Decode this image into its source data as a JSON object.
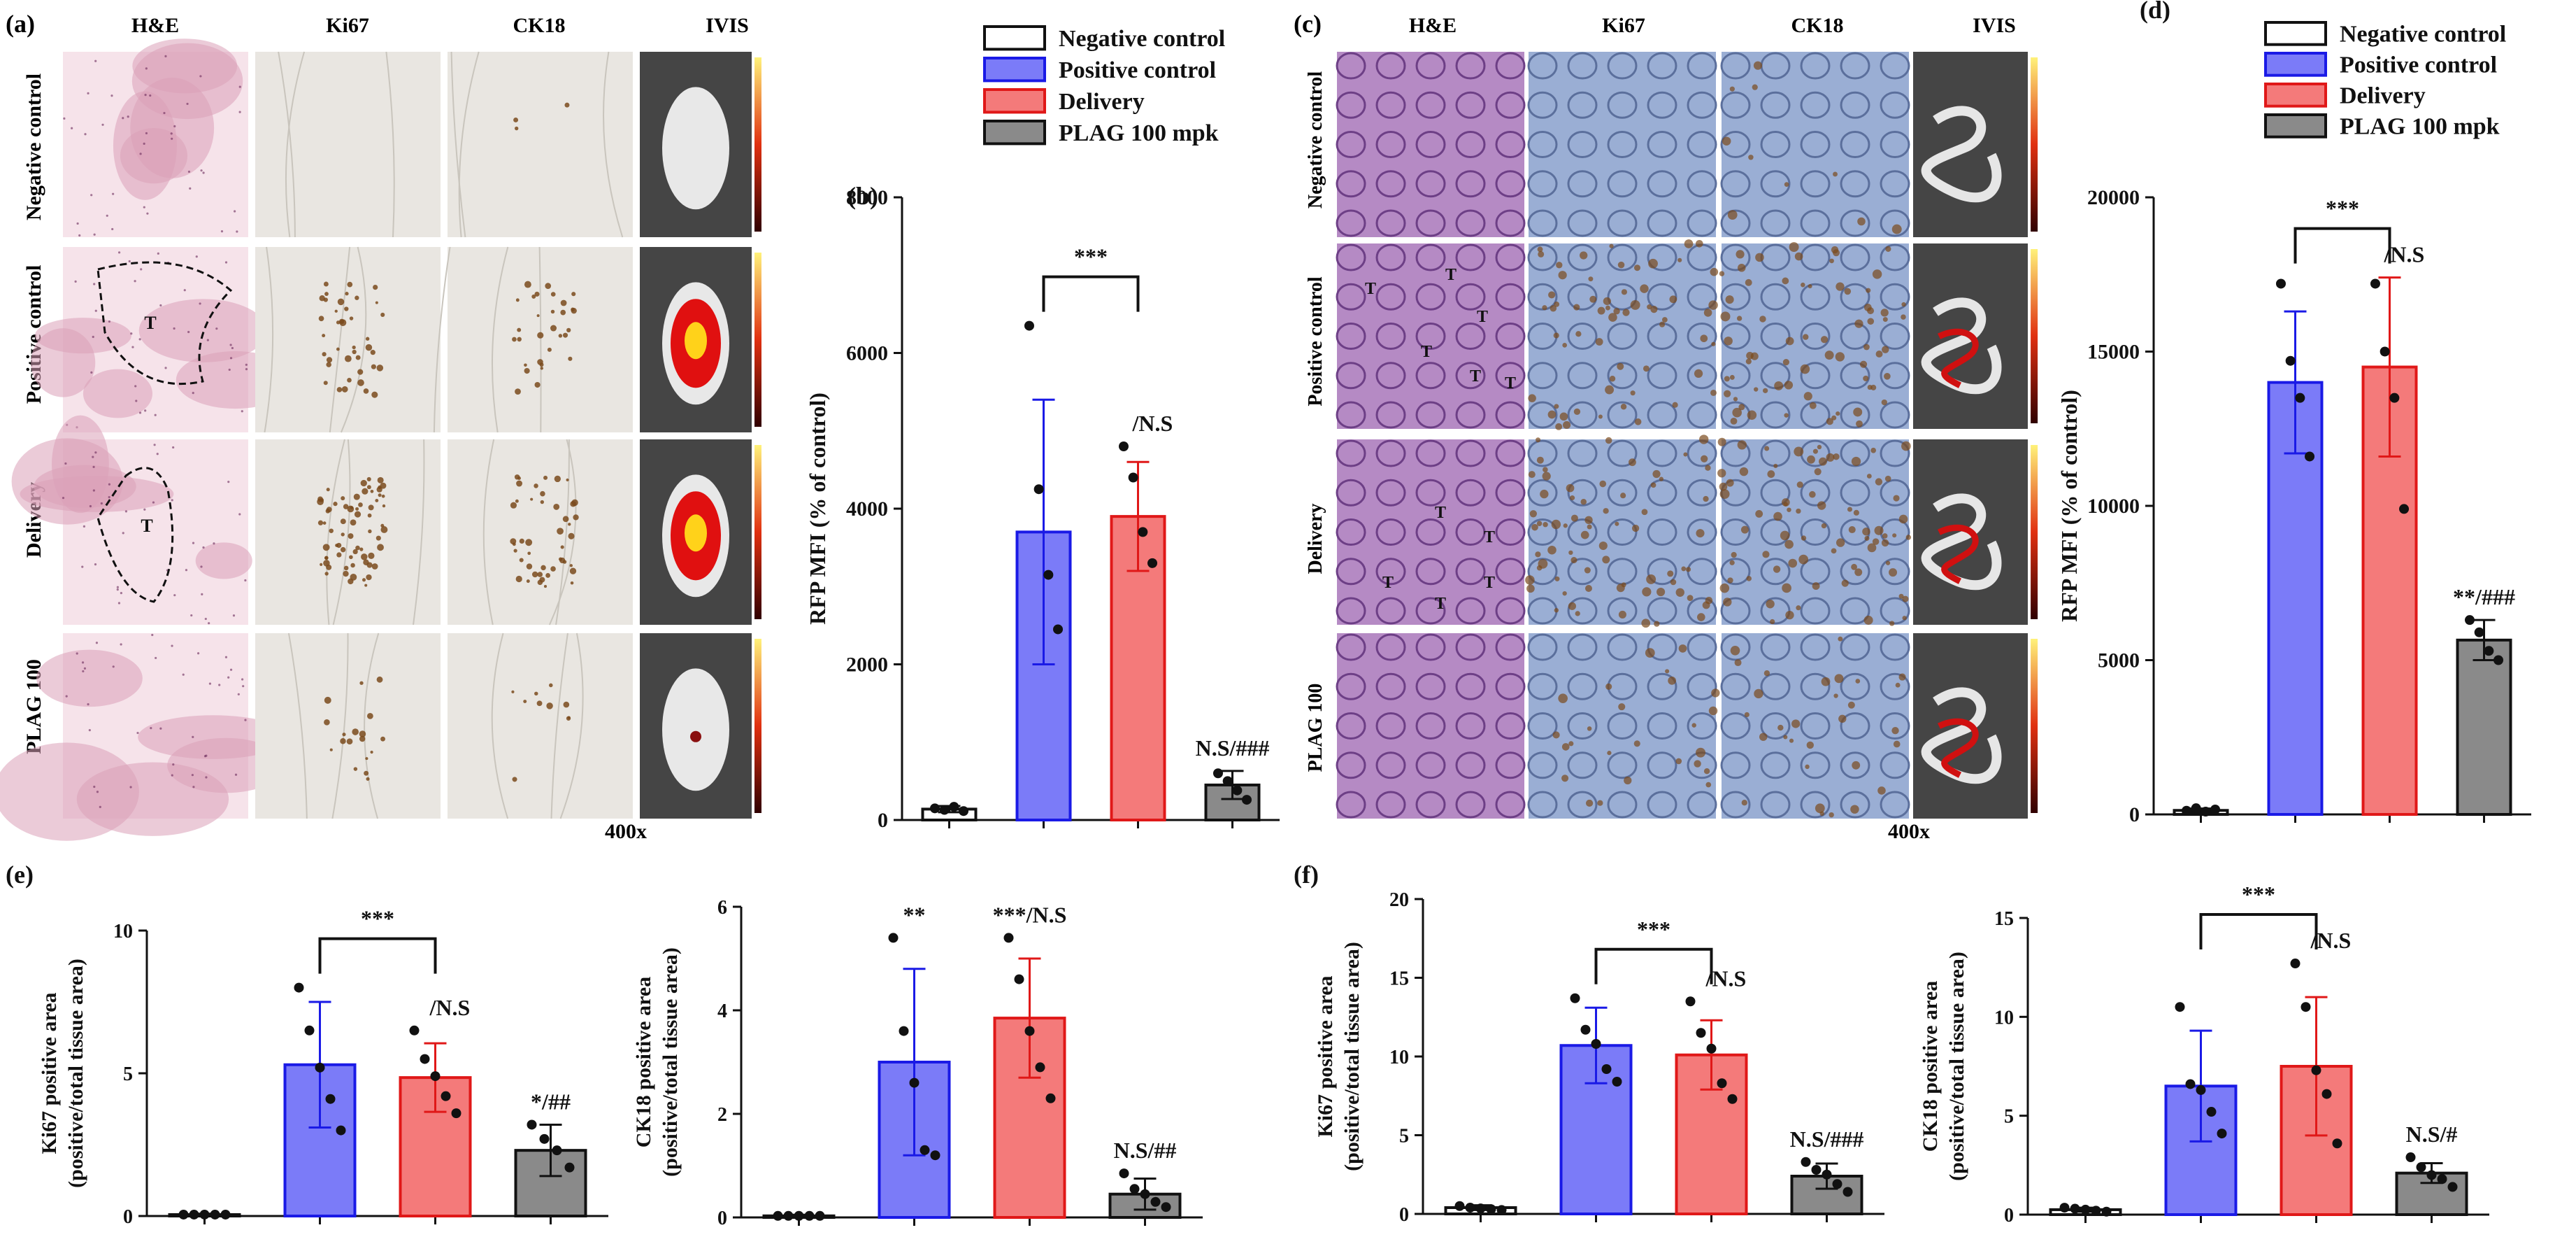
{
  "colors": {
    "negative": "#ffffff",
    "positive": "#7b7bf8",
    "delivery": "#f47a7a",
    "plag": "#8a8a8a",
    "positive_edge": "#1a1ae6",
    "delivery_edge": "#e01818",
    "plag_edge": "#111111",
    "he_tissue": "#dba0b8",
    "he_bg": "#f6e3ea",
    "ihc_bg": "#e9e6e1",
    "ihc_brown": "#7a4a1c",
    "colon_he": "#b58ac4",
    "colon_ihc": "#9aaed4",
    "ivis_bg": "#454545"
  },
  "legend": [
    "Negative control",
    "Positive control",
    "Delivery",
    "PLAG 100 mpk"
  ],
  "panels": {
    "a": {
      "label": "(a)",
      "col_headers": [
        "H&E",
        "Ki67",
        "CK18",
        "IVIS"
      ],
      "row_labels": [
        "Negative control",
        "Positive control",
        "Delivery",
        "PLAG 100"
      ],
      "tumor_marker": "T",
      "magnification": "400x"
    },
    "c": {
      "label": "(c)",
      "col_headers": [
        "H&E",
        "Ki67",
        "CK18",
        "IVIS"
      ],
      "row_labels": [
        "Negative control",
        "Positive control",
        "Delivery",
        "PLAG 100"
      ],
      "tumor_marker": "T",
      "magnification": "400x"
    }
  },
  "chart_data": [
    {
      "id": "b",
      "panel_label": "(b)",
      "type": "bar",
      "categories": [
        "Negative control",
        "Positive control",
        "Delivery",
        "PLAG 100 mpk"
      ],
      "values": [
        140,
        3700,
        3900,
        450
      ],
      "errors": [
        40,
        1700,
        700,
        180
      ],
      "points": [
        [
          150,
          130,
          170,
          115
        ],
        [
          6350,
          4250,
          3150,
          2450
        ],
        [
          4800,
          4400,
          3700,
          3300
        ],
        [
          600,
          500,
          380,
          260
        ]
      ],
      "ylabel": "RFP MFI (% of control)",
      "ylim": [
        0,
        8000
      ],
      "yticks": [
        0,
        2000,
        4000,
        6000,
        8000
      ],
      "bracket": {
        "from": 1,
        "to": 2,
        "label": "***"
      },
      "bar_annotations": [
        "",
        "",
        "/N.S",
        "N.S/###"
      ]
    },
    {
      "id": "d",
      "panel_label": "(d)",
      "type": "bar",
      "categories": [
        "Negative control",
        "Positive control",
        "Delivery",
        "PLAG 100 mpk"
      ],
      "values": [
        130,
        14000,
        14500,
        5650
      ],
      "errors": [
        60,
        2300,
        2900,
        650
      ],
      "points": [
        [
          120,
          200,
          90,
          160
        ],
        [
          17200,
          14700,
          13500,
          11600
        ],
        [
          17200,
          15000,
          13500,
          9900
        ],
        [
          6300,
          5900,
          5300,
          5000
        ]
      ],
      "ylabel": "RFP MFI (% of control)",
      "ylim": [
        0,
        20000
      ],
      "yticks": [
        0,
        5000,
        10000,
        15000,
        20000
      ],
      "bracket": {
        "from": 1,
        "to": 2,
        "label": "***"
      },
      "bar_annotations": [
        "",
        "",
        "/N.S",
        "**/###"
      ]
    },
    {
      "id": "e1",
      "panel_label": "(e)",
      "type": "bar",
      "categories": [
        "Negative control",
        "Positive control",
        "Delivery",
        "PLAG 100 mpk"
      ],
      "values": [
        0.05,
        5.3,
        4.85,
        2.3
      ],
      "errors": [
        0.03,
        2.2,
        1.2,
        0.9
      ],
      "points": [
        [
          0.05,
          0.05,
          0.05,
          0.05,
          0.05
        ],
        [
          8.0,
          6.5,
          5.2,
          4.1,
          3.0
        ],
        [
          6.5,
          5.5,
          4.9,
          4.2,
          3.6
        ],
        [
          3.2,
          2.7,
          2.3,
          1.7
        ]
      ],
      "ylabel": "Ki67 positive area",
      "ylabel2": "(positive/total tissue area)",
      "ylim": [
        0,
        10
      ],
      "yticks": [
        0,
        5,
        10
      ],
      "bracket": {
        "from": 1,
        "to": 2,
        "label": "***"
      },
      "bar_annotations": [
        "",
        "",
        "/N.S",
        "*/##"
      ]
    },
    {
      "id": "e2",
      "panel_label": "",
      "type": "bar",
      "categories": [
        "Negative control",
        "Positive control",
        "Delivery",
        "PLAG 100 mpk"
      ],
      "values": [
        0.03,
        3.0,
        3.85,
        0.45
      ],
      "errors": [
        0.02,
        1.8,
        1.15,
        0.3
      ],
      "points": [
        [
          0.03,
          0.03,
          0.03,
          0.03,
          0.03
        ],
        [
          5.4,
          3.6,
          2.6,
          1.3,
          1.2
        ],
        [
          5.4,
          4.6,
          3.6,
          2.9,
          2.3
        ],
        [
          0.85,
          0.55,
          0.45,
          0.3,
          0.2
        ]
      ],
      "ylabel": "CK18 positive area",
      "ylabel2": "(positive/total tissue area)",
      "ylim": [
        0,
        6
      ],
      "yticks": [
        0,
        2,
        4,
        6
      ],
      "bracket": null,
      "bar_annotations": [
        "",
        "**",
        "***/N.S",
        "N.S/##"
      ]
    },
    {
      "id": "f1",
      "panel_label": "(f)",
      "type": "bar",
      "categories": [
        "Negative control",
        "Positive control",
        "Delivery",
        "PLAG 100 mpk"
      ],
      "values": [
        0.4,
        10.7,
        10.1,
        2.4
      ],
      "errors": [
        0.15,
        2.4,
        2.2,
        0.8
      ],
      "points": [
        [
          0.5,
          0.4,
          0.35,
          0.3,
          0.25
        ],
        [
          13.7,
          11.7,
          10.8,
          9.2,
          8.4
        ],
        [
          13.5,
          11.5,
          10.5,
          8.3,
          7.3
        ],
        [
          3.3,
          2.8,
          2.5,
          1.9,
          1.4
        ]
      ],
      "ylabel": "Ki67 positive area",
      "ylabel2": "(positive/total tissue area)",
      "ylim": [
        0,
        20
      ],
      "yticks": [
        0,
        5,
        10,
        15,
        20
      ],
      "bracket": {
        "from": 1,
        "to": 2,
        "label": "***"
      },
      "bar_annotations": [
        "",
        "",
        "/N.S",
        "N.S/###"
      ]
    },
    {
      "id": "f2",
      "panel_label": "",
      "type": "bar",
      "categories": [
        "Negative control",
        "Positive control",
        "Delivery",
        "PLAG 100 mpk"
      ],
      "values": [
        0.25,
        6.5,
        7.5,
        2.1
      ],
      "errors": [
        0.1,
        2.8,
        3.5,
        0.5
      ],
      "points": [
        [
          0.35,
          0.3,
          0.25,
          0.2,
          0.15
        ],
        [
          10.5,
          6.6,
          6.3,
          5.2,
          4.1
        ],
        [
          12.7,
          10.5,
          7.3,
          6.1,
          3.6
        ],
        [
          2.9,
          2.4,
          2.0,
          1.8,
          1.4
        ]
      ],
      "ylabel": "CK18 positive area",
      "ylabel2": "(positive/total tissue area)",
      "ylim": [
        0,
        15
      ],
      "yticks": [
        0,
        5,
        10,
        15
      ],
      "bracket": {
        "from": 1,
        "to": 2,
        "label": "***"
      },
      "bar_annotations": [
        "",
        "",
        "/N.S",
        "N.S/#"
      ]
    }
  ]
}
